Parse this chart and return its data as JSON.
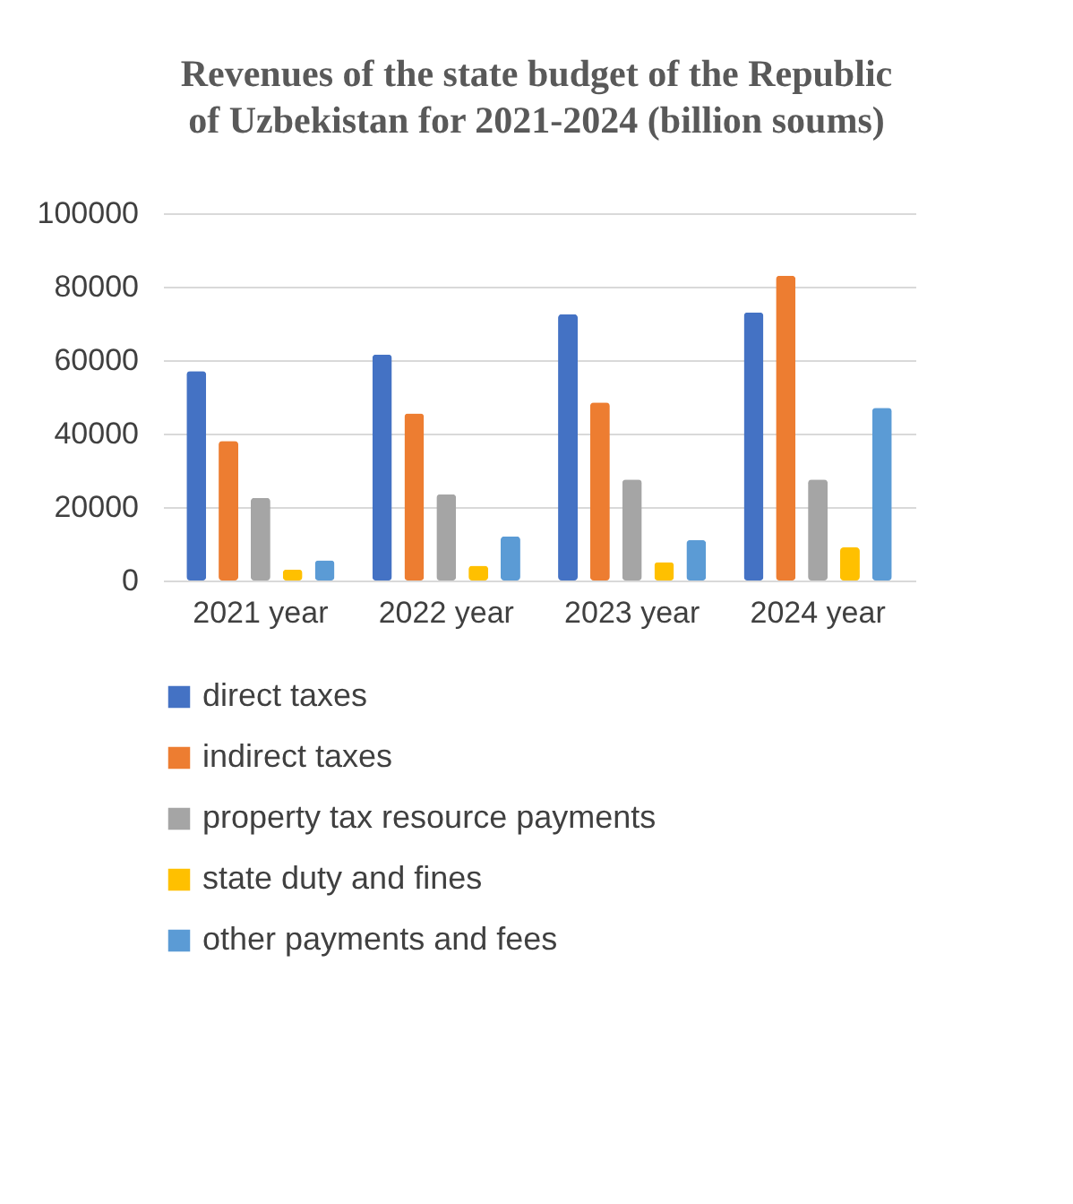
{
  "chart_data": {
    "type": "bar",
    "title": "Revenues of the state budget of the Republic of Uzbekistan for 2021-2024 (billion soums)",
    "categories": [
      "2021 year",
      "2022 year",
      "2023 year",
      "2024 year"
    ],
    "series": [
      {
        "name": "direct taxes",
        "color": "#4472c4",
        "values": [
          57000,
          61500,
          72500,
          73000
        ]
      },
      {
        "name": "indirect taxes",
        "color": "#ed7d31",
        "values": [
          38000,
          45500,
          48500,
          83000
        ]
      },
      {
        "name": "property tax resource payments",
        "color": "#a5a5a5",
        "values": [
          22500,
          23500,
          27500,
          27500
        ]
      },
      {
        "name": "state duty and fines",
        "color": "#ffc000",
        "values": [
          3000,
          4000,
          5000,
          9000
        ]
      },
      {
        "name": "other payments and fees",
        "color": "#5b9bd5",
        "values": [
          5500,
          12000,
          11000,
          47000
        ]
      }
    ],
    "ylim": [
      0,
      100000
    ],
    "yticks": [
      0,
      20000,
      40000,
      60000,
      80000,
      100000
    ],
    "grid": "y",
    "legend": "bottom"
  }
}
